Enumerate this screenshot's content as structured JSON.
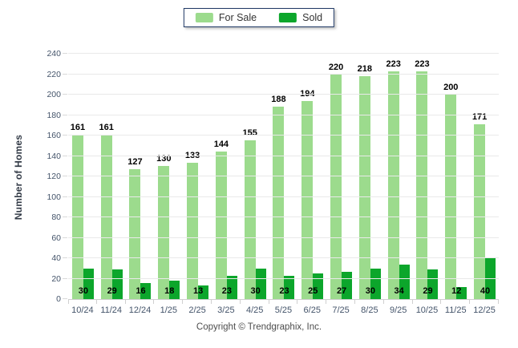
{
  "legend": {
    "items": [
      {
        "label": "For Sale",
        "color": "#9CDB8D"
      },
      {
        "label": "Sold",
        "color": "#0CA62B"
      }
    ]
  },
  "y_axis": {
    "title": "Number of Homes",
    "ticks": [
      0,
      20,
      40,
      60,
      80,
      100,
      120,
      140,
      160,
      180,
      200,
      220,
      240
    ]
  },
  "chart_data": {
    "type": "bar",
    "title": "",
    "categories": [
      "10/24",
      "11/24",
      "12/24",
      "1/25",
      "2/25",
      "3/25",
      "4/25",
      "5/25",
      "6/25",
      "7/25",
      "8/25",
      "9/25",
      "10/25",
      "11/25",
      "12/25"
    ],
    "series": [
      {
        "name": "For Sale",
        "color": "#9CDB8D",
        "values": [
          161,
          161,
          127,
          130,
          133,
          144,
          155,
          188,
          194,
          220,
          218,
          223,
          223,
          200,
          171
        ]
      },
      {
        "name": "Sold",
        "color": "#0CA62B",
        "values": [
          30,
          29,
          16,
          18,
          13,
          23,
          30,
          23,
          25,
          27,
          30,
          34,
          29,
          12,
          40
        ]
      }
    ],
    "xlabel": "",
    "ylabel": "Number of Homes",
    "ylim": [
      0,
      240
    ],
    "grid": true,
    "legend_position": "top",
    "bar_value_labels": true
  },
  "footer": {
    "copyright": "Copyright © Trendgraphix, Inc."
  }
}
